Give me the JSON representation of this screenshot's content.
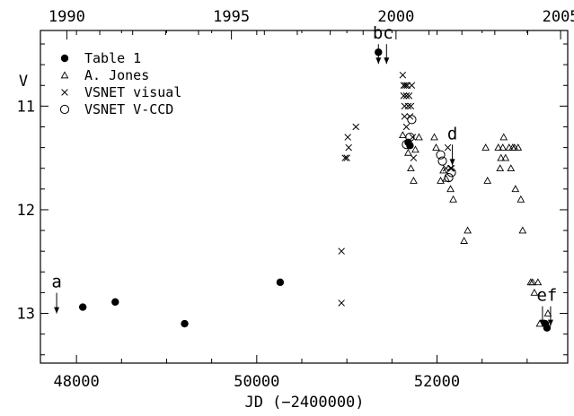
{
  "chart_data": {
    "type": "scatter",
    "xlabel": "JD (−2400000)",
    "ylabel": "V",
    "xlim": [
      47600,
      53450
    ],
    "ylim": [
      13.48,
      10.27
    ],
    "y_inverted": true,
    "grid": false,
    "legend_position": "top-left",
    "x_ticks": [
      48000,
      50000,
      52000
    ],
    "y_ticks": [
      11,
      12,
      13
    ],
    "top_axis": {
      "ticks": [
        1990,
        1995,
        2000,
        2005
      ],
      "tick_jd": [
        47893,
        49719,
        51545,
        53371
      ]
    },
    "series": [
      {
        "name": "Table 1",
        "marker": "filled-circle",
        "points": [
          [
            48070,
            12.94
          ],
          [
            48430,
            12.89
          ],
          [
            49200,
            13.1
          ],
          [
            50260,
            12.7
          ],
          [
            51350,
            10.48
          ],
          [
            51680,
            11.35
          ],
          [
            51700,
            11.38
          ],
          [
            53200,
            13.1
          ],
          [
            53220,
            13.14
          ]
        ]
      },
      {
        "name": "A. Jones",
        "marker": "open-triangle",
        "points": [
          [
            51620,
            11.28
          ],
          [
            51680,
            11.45
          ],
          [
            51710,
            11.6
          ],
          [
            51740,
            11.72
          ],
          [
            51760,
            11.42
          ],
          [
            51800,
            11.3
          ],
          [
            51970,
            11.3
          ],
          [
            51990,
            11.4
          ],
          [
            52040,
            11.72
          ],
          [
            52070,
            11.62
          ],
          [
            52100,
            11.7
          ],
          [
            52150,
            11.8
          ],
          [
            52180,
            11.9
          ],
          [
            52300,
            12.3
          ],
          [
            52340,
            12.2
          ],
          [
            52540,
            11.4
          ],
          [
            52560,
            11.72
          ],
          [
            52680,
            11.4
          ],
          [
            52700,
            11.6
          ],
          [
            52710,
            11.5
          ],
          [
            52730,
            11.4
          ],
          [
            52740,
            11.3
          ],
          [
            52760,
            11.5
          ],
          [
            52800,
            11.4
          ],
          [
            52820,
            11.6
          ],
          [
            52840,
            11.4
          ],
          [
            52860,
            11.4
          ],
          [
            52870,
            11.8
          ],
          [
            52900,
            11.4
          ],
          [
            52930,
            11.9
          ],
          [
            52950,
            12.2
          ],
          [
            53040,
            12.7
          ],
          [
            53060,
            12.7
          ],
          [
            53080,
            12.8
          ],
          [
            53120,
            12.7
          ],
          [
            53140,
            13.1
          ],
          [
            53230,
            13.0
          ]
        ]
      },
      {
        "name": "VSNET visual",
        "marker": "cross",
        "points": [
          [
            50940,
            12.4
          ],
          [
            50940,
            12.9
          ],
          [
            50980,
            11.5
          ],
          [
            51000,
            11.5
          ],
          [
            51010,
            11.3
          ],
          [
            51020,
            11.4
          ],
          [
            51100,
            11.2
          ],
          [
            51620,
            10.7
          ],
          [
            51630,
            10.8
          ],
          [
            51630,
            10.9
          ],
          [
            51640,
            11.0
          ],
          [
            51640,
            11.1
          ],
          [
            51650,
            10.8
          ],
          [
            51660,
            10.9
          ],
          [
            51660,
            11.2
          ],
          [
            51670,
            10.8
          ],
          [
            51680,
            11.0
          ],
          [
            51690,
            10.9
          ],
          [
            51700,
            11.1
          ],
          [
            51710,
            11.0
          ],
          [
            51720,
            10.8
          ],
          [
            51730,
            11.3
          ],
          [
            51740,
            11.5
          ],
          [
            52100,
            11.6
          ],
          [
            52120,
            11.4
          ],
          [
            52150,
            11.6
          ],
          [
            52160,
            11.6
          ]
        ]
      },
      {
        "name": "VSNET V-CCD",
        "marker": "open-circle",
        "points": [
          [
            51660,
            11.37
          ],
          [
            51700,
            11.3
          ],
          [
            51720,
            11.13
          ],
          [
            52040,
            11.47
          ],
          [
            52060,
            11.53
          ],
          [
            52130,
            11.69
          ],
          [
            52160,
            11.64
          ]
        ]
      }
    ],
    "annotations": [
      {
        "text": "a",
        "x": 47780,
        "y": 12.75
      },
      {
        "text": "bc",
        "x": 51400,
        "y": 10.35
      },
      {
        "text": "d",
        "x": 52170,
        "y": 11.32
      },
      {
        "text": "ef",
        "x": 53220,
        "y": 12.88
      }
    ]
  }
}
